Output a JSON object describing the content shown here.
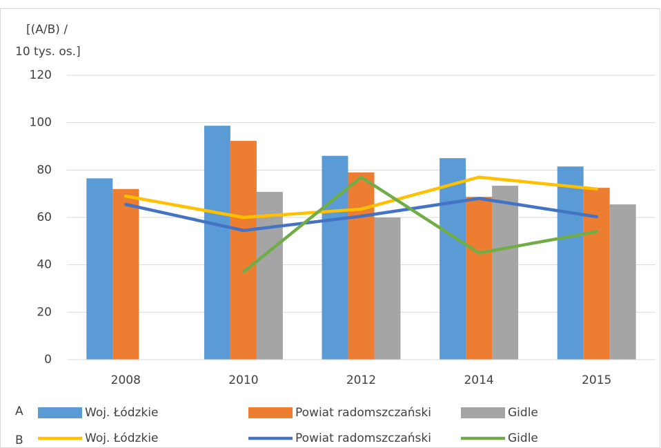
{
  "chart_data": {
    "type": "combo",
    "y_label_lines": [
      "[(A/B) /",
      "10 tys. os.]"
    ],
    "categories": [
      "2008",
      "2010",
      "2012",
      "2014",
      "2015"
    ],
    "bar_legend_label": "A",
    "line_legend_label": "B",
    "series": [
      {
        "name": "Woj. Łódzkie",
        "type": "bar",
        "color": "#5b9bd5",
        "values": [
          76.5,
          98.7,
          86,
          85,
          81.5
        ]
      },
      {
        "name": "Powiat radomszczański",
        "type": "bar",
        "color": "#ed7d31",
        "values": [
          72,
          92.3,
          79,
          68.7,
          72.5
        ]
      },
      {
        "name": "Gidle",
        "type": "bar",
        "color": "#a5a5a5",
        "values": [
          null,
          70.8,
          60,
          73.4,
          65.5
        ]
      },
      {
        "name": "Woj. Łódzkie",
        "type": "line",
        "color": "#ffc000",
        "values": [
          69,
          60,
          63.5,
          77,
          72
        ]
      },
      {
        "name": "Powiat radomszczański",
        "type": "line",
        "color": "#4472c4",
        "values": [
          65.5,
          54.5,
          60.5,
          68,
          60.3
        ]
      },
      {
        "name": "Gidle",
        "type": "line",
        "color": "#70ad47",
        "values": [
          null,
          37,
          77,
          45,
          54
        ]
      }
    ],
    "ylim": [
      0,
      120
    ],
    "yticks": [
      0,
      20,
      40,
      60,
      80,
      100,
      120
    ],
    "grid": true
  }
}
